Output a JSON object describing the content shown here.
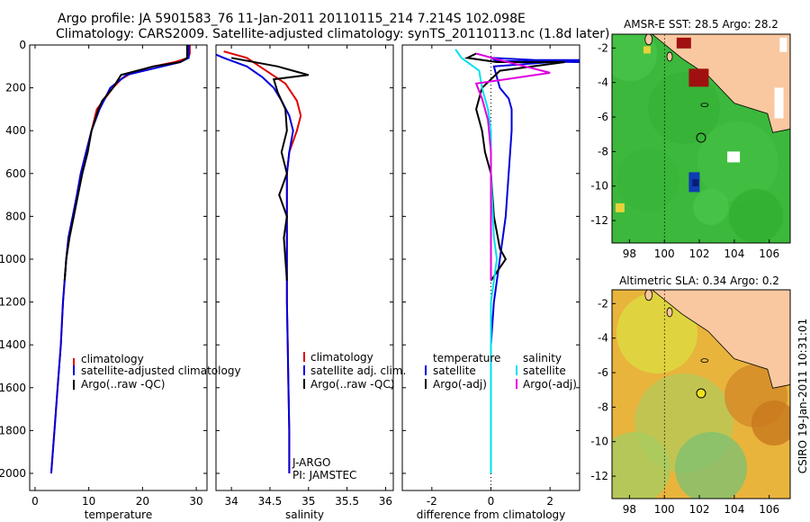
{
  "header": {
    "line1": "Argo profile: JA 5901583_76 11-Jan-2011 20110115_214 7.214S 102.098E",
    "line2": "Climatology: CARS2009. Satellite-adjusted climatology: synTS_20110113.nc (1.8d later)"
  },
  "colors": {
    "climatology": "#e00000",
    "satellite": "#0000dd",
    "argo": "#000000",
    "argo_adj": "#e000e0",
    "satellite_sal": "#00e0ee",
    "land": "#fac8a0"
  },
  "chart_data": [
    {
      "type": "line",
      "xlabel": "temperature",
      "xlim": [
        -1,
        32
      ],
      "xticks": [
        0,
        10,
        20,
        30
      ],
      "ylim": [
        2080,
        0
      ],
      "yticks": [
        0,
        200,
        400,
        600,
        800,
        1000,
        1200,
        1400,
        1600,
        1800,
        2000
      ],
      "series": [
        {
          "name": "climatology",
          "color": "#e00000",
          "points": [
            [
              28.8,
              0
            ],
            [
              28.8,
              40
            ],
            [
              28.5,
              60
            ],
            [
              26,
              80
            ],
            [
              22,
              100
            ],
            [
              18,
              130
            ],
            [
              16,
              160
            ],
            [
              14.5,
              200
            ],
            [
              13,
              250
            ],
            [
              11.5,
              300
            ],
            [
              10.5,
              400
            ],
            [
              9.5,
              500
            ],
            [
              8.5,
              600
            ],
            [
              7.8,
              700
            ],
            [
              7,
              800
            ],
            [
              6.2,
              900
            ],
            [
              5.8,
              1000
            ],
            [
              5.2,
              1200
            ],
            [
              4.8,
              1400
            ],
            [
              4.2,
              1600
            ],
            [
              3.6,
              1800
            ],
            [
              3,
              2000
            ]
          ]
        },
        {
          "name": "satellite-adjusted climatology",
          "color": "#0000dd",
          "points": [
            [
              28.6,
              0
            ],
            [
              28.6,
              60
            ],
            [
              27,
              80
            ],
            [
              22,
              110
            ],
            [
              17,
              140
            ],
            [
              15,
              180
            ],
            [
              14,
              200
            ],
            [
              13,
              250
            ],
            [
              12,
              300
            ],
            [
              10.5,
              400
            ],
            [
              9.5,
              500
            ],
            [
              8.5,
              600
            ],
            [
              7.8,
              700
            ],
            [
              7,
              800
            ],
            [
              6.2,
              900
            ],
            [
              5.8,
              1000
            ],
            [
              5.2,
              1200
            ],
            [
              4.8,
              1400
            ],
            [
              4.2,
              1600
            ],
            [
              3.6,
              1800
            ],
            [
              3,
              2000
            ]
          ]
        },
        {
          "name": "Argo(..raw -QC)",
          "color": "#000000",
          "points": [
            [
              28.3,
              0
            ],
            [
              28.3,
              60
            ],
            [
              27,
              80
            ],
            [
              22,
              100
            ],
            [
              16,
              140
            ],
            [
              14.5,
              200
            ],
            [
              12.5,
              260
            ],
            [
              11.8,
              300
            ],
            [
              10.5,
              400
            ],
            [
              9.8,
              500
            ],
            [
              8.8,
              600
            ],
            [
              8,
              700
            ],
            [
              7.2,
              800
            ],
            [
              6.4,
              900
            ],
            [
              5.8,
              1000
            ],
            [
              5.5,
              1100
            ]
          ]
        }
      ],
      "legend": [
        "climatology",
        "satellite-adjusted climatology",
        "Argo(..raw -QC)"
      ]
    },
    {
      "type": "line",
      "xlabel": "salinity",
      "xlim": [
        33.8,
        36.1
      ],
      "xticks": [
        34,
        34.5,
        35,
        35.5,
        36
      ],
      "ylim": [
        2080,
        0
      ],
      "series": [
        {
          "name": "climatology",
          "color": "#e00000",
          "points": [
            [
              33.9,
              30
            ],
            [
              34.2,
              60
            ],
            [
              34.45,
              120
            ],
            [
              34.7,
              180
            ],
            [
              34.85,
              260
            ],
            [
              34.9,
              330
            ],
            [
              34.85,
              400
            ],
            [
              34.75,
              500
            ],
            [
              34.72,
              600
            ],
            [
              34.72,
              800
            ],
            [
              34.72,
              1000
            ],
            [
              34.72,
              1200
            ],
            [
              34.73,
              1400
            ],
            [
              34.74,
              1600
            ],
            [
              34.75,
              1800
            ],
            [
              34.75,
              2000
            ]
          ]
        },
        {
          "name": "satellite adj. clim.",
          "color": "#0000dd",
          "points": [
            [
              33.8,
              45
            ],
            [
              33.9,
              60
            ],
            [
              34.2,
              100
            ],
            [
              34.4,
              150
            ],
            [
              34.55,
              200
            ],
            [
              34.65,
              260
            ],
            [
              34.75,
              330
            ],
            [
              34.8,
              400
            ],
            [
              34.75,
              500
            ],
            [
              34.72,
              600
            ],
            [
              34.72,
              800
            ],
            [
              34.72,
              1000
            ],
            [
              34.72,
              1200
            ],
            [
              34.73,
              1400
            ],
            [
              34.74,
              1600
            ],
            [
              34.75,
              1800
            ],
            [
              34.75,
              2000
            ]
          ]
        },
        {
          "name": "Argo(..raw -QC)",
          "color": "#000000",
          "points": [
            [
              34.0,
              60
            ],
            [
              34.6,
              100
            ],
            [
              34.8,
              120
            ],
            [
              35.0,
              140
            ],
            [
              34.55,
              160
            ],
            [
              34.6,
              220
            ],
            [
              34.7,
              300
            ],
            [
              34.72,
              400
            ],
            [
              34.65,
              500
            ],
            [
              34.72,
              600
            ],
            [
              34.62,
              700
            ],
            [
              34.72,
              800
            ],
            [
              34.68,
              900
            ],
            [
              34.7,
              1000
            ],
            [
              34.72,
              1100
            ]
          ]
        }
      ],
      "legend": [
        "climatology",
        "satellite adj. clim.",
        "Argo(..raw -QC)"
      ],
      "annotation": [
        "J-ARGO",
        "PI: JAMSTEC"
      ]
    },
    {
      "type": "line",
      "xlabel": "difference from climatology",
      "xlim": [
        -3,
        3
      ],
      "xticks": [
        -2,
        0,
        2
      ],
      "ylim": [
        2080,
        0
      ],
      "series": [
        {
          "name": "temperature satellite",
          "color": "#0000dd",
          "points": [
            [
              3,
              80
            ],
            [
              0.2,
              75
            ],
            [
              0,
              60
            ],
            [
              1.5,
              70
            ],
            [
              3,
              70
            ],
            [
              0.1,
              100
            ],
            [
              0.3,
              200
            ],
            [
              0.6,
              250
            ],
            [
              0.7,
              300
            ],
            [
              0.7,
              400
            ],
            [
              0.6,
              600
            ],
            [
              0.5,
              800
            ],
            [
              0.3,
              1000
            ],
            [
              0.1,
              1200
            ],
            [
              0,
              1400
            ],
            [
              0,
              1600
            ],
            [
              0,
              2000
            ]
          ]
        },
        {
          "name": "temperature Argo(-adj)",
          "color": "#000000",
          "points": [
            [
              -0.5,
              40
            ],
            [
              -0.8,
              60
            ],
            [
              0.2,
              80
            ],
            [
              2.5,
              80
            ],
            [
              0.3,
              120
            ],
            [
              -0.3,
              200
            ],
            [
              -0.5,
              300
            ],
            [
              -0.3,
              400
            ],
            [
              -0.2,
              500
            ],
            [
              0,
              600
            ],
            [
              0.1,
              800
            ],
            [
              0.3,
              950
            ],
            [
              0.5,
              1000
            ],
            [
              0,
              1100
            ]
          ]
        },
        {
          "name": "salinity satellite",
          "color": "#00e0ee",
          "points": [
            [
              -1.2,
              20
            ],
            [
              -1,
              60
            ],
            [
              -0.4,
              120
            ],
            [
              -0.3,
              200
            ],
            [
              -0.1,
              300
            ],
            [
              0,
              400
            ],
            [
              0,
              600
            ],
            [
              0.1,
              900
            ],
            [
              0.2,
              1000
            ],
            [
              0,
              1200
            ],
            [
              0,
              1400
            ],
            [
              0,
              2000
            ]
          ]
        },
        {
          "name": "salinity Argo(-adj)",
          "color": "#e000e0",
          "points": [
            [
              -0.5,
              40
            ],
            [
              0.3,
              70
            ],
            [
              2,
              130
            ],
            [
              0.5,
              160
            ],
            [
              -0.5,
              180
            ],
            [
              -0.3,
              250
            ],
            [
              -0.1,
              350
            ],
            [
              0,
              500
            ],
            [
              0,
              700
            ],
            [
              0,
              900
            ],
            [
              0,
              1100
            ]
          ]
        }
      ],
      "legend": [
        "temperature",
        "satellite",
        "Argo(-adj)",
        "salinity",
        "satellite",
        "Argo(-adj)"
      ]
    },
    {
      "type": "heatmap",
      "title": "AMSR-E SST: 28.5 Argo: 28.2",
      "xticks": [
        98,
        100,
        102,
        104,
        106
      ],
      "yticks": [
        -2,
        -4,
        -6,
        -8,
        -10,
        -12
      ],
      "xlim": [
        97,
        107.2
      ],
      "ylim": [
        -13.3,
        -1.2
      ],
      "argo_position": [
        102.1,
        -7.2
      ]
    },
    {
      "type": "heatmap",
      "title": "Altimetric SLA: 0.34 Argo: 0.2",
      "xticks": [
        98,
        100,
        102,
        104,
        106
      ],
      "yticks": [
        -2,
        -4,
        -6,
        -8,
        -10,
        -12
      ],
      "xlim": [
        97,
        107.2
      ],
      "ylim": [
        -13.3,
        -1.2
      ],
      "argo_position": [
        102.1,
        -7.2
      ]
    }
  ],
  "side_label": "CSIRO 19-Jan-2011 10:31:01"
}
